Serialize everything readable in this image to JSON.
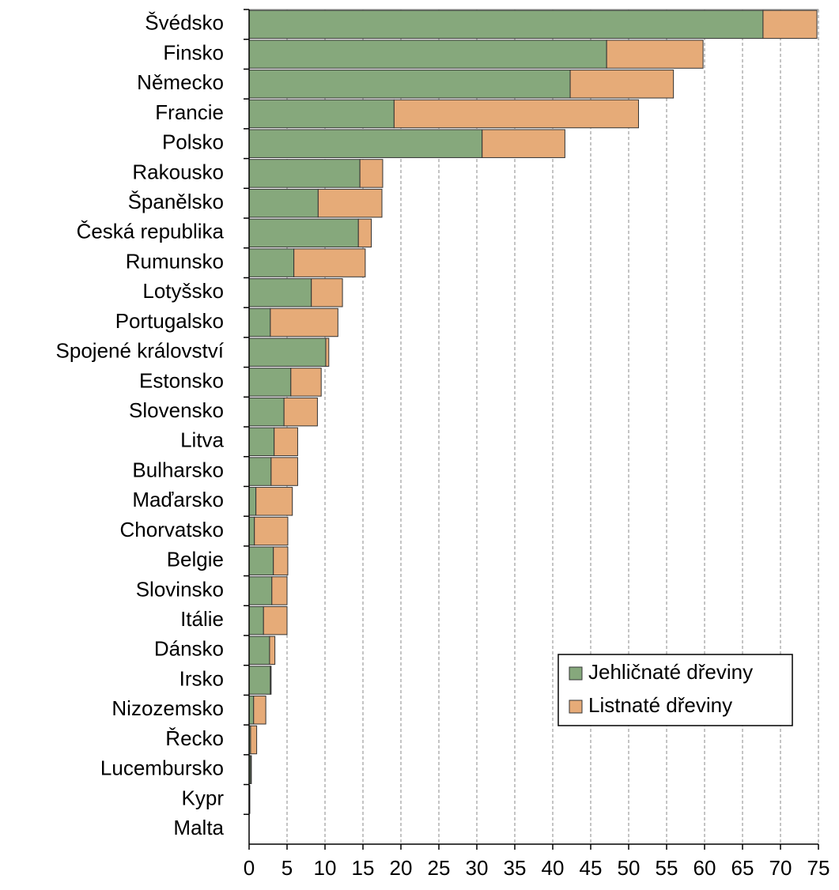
{
  "chart_data": {
    "type": "bar",
    "orientation": "horizontal",
    "stacked": true,
    "categories": [
      "Švédsko",
      "Finsko",
      "Německo",
      "Francie",
      "Polsko",
      "Rakousko",
      "Španělsko",
      "Česká republika",
      "Rumunsko",
      "Lotyšsko",
      "Portugalsko",
      "Spojené království",
      "Estonsko",
      "Slovensko",
      "Litva",
      "Bulharsko",
      "Maďarsko",
      "Chorvatsko",
      "Belgie",
      "Slovinsko",
      "Itálie",
      "Dánsko",
      "Irsko",
      "Nizozemsko",
      "Řecko",
      "Lucembursko",
      "Kypr",
      "Malta"
    ],
    "series": [
      {
        "name": "Jehličnaté dřeviny",
        "color": "#86a87c",
        "values": [
          67.7,
          47.1,
          42.3,
          19.1,
          30.7,
          14.6,
          9.1,
          14.4,
          5.9,
          8.2,
          2.8,
          10.1,
          5.5,
          4.6,
          3.3,
          2.9,
          0.9,
          0.7,
          3.2,
          3.0,
          1.9,
          2.7,
          2.8,
          0.6,
          0.2,
          0.2,
          0.1,
          0
        ]
      },
      {
        "name": "Listnaté dřeviny",
        "color": "#e6ab78",
        "values": [
          7.1,
          12.7,
          13.6,
          32.2,
          10.9,
          3.0,
          8.4,
          1.7,
          9.4,
          4.1,
          8.9,
          0.4,
          4.0,
          4.4,
          3.1,
          3.5,
          4.8,
          4.4,
          1.9,
          2.0,
          3.1,
          0.7,
          0.1,
          1.6,
          0.8,
          0.1,
          0,
          0
        ]
      }
    ],
    "xlim": [
      0,
      75
    ],
    "xticks": [
      0,
      5,
      10,
      15,
      20,
      25,
      30,
      35,
      40,
      45,
      50,
      55,
      60,
      65,
      70,
      75
    ],
    "grid": true,
    "legend": "lower right"
  }
}
